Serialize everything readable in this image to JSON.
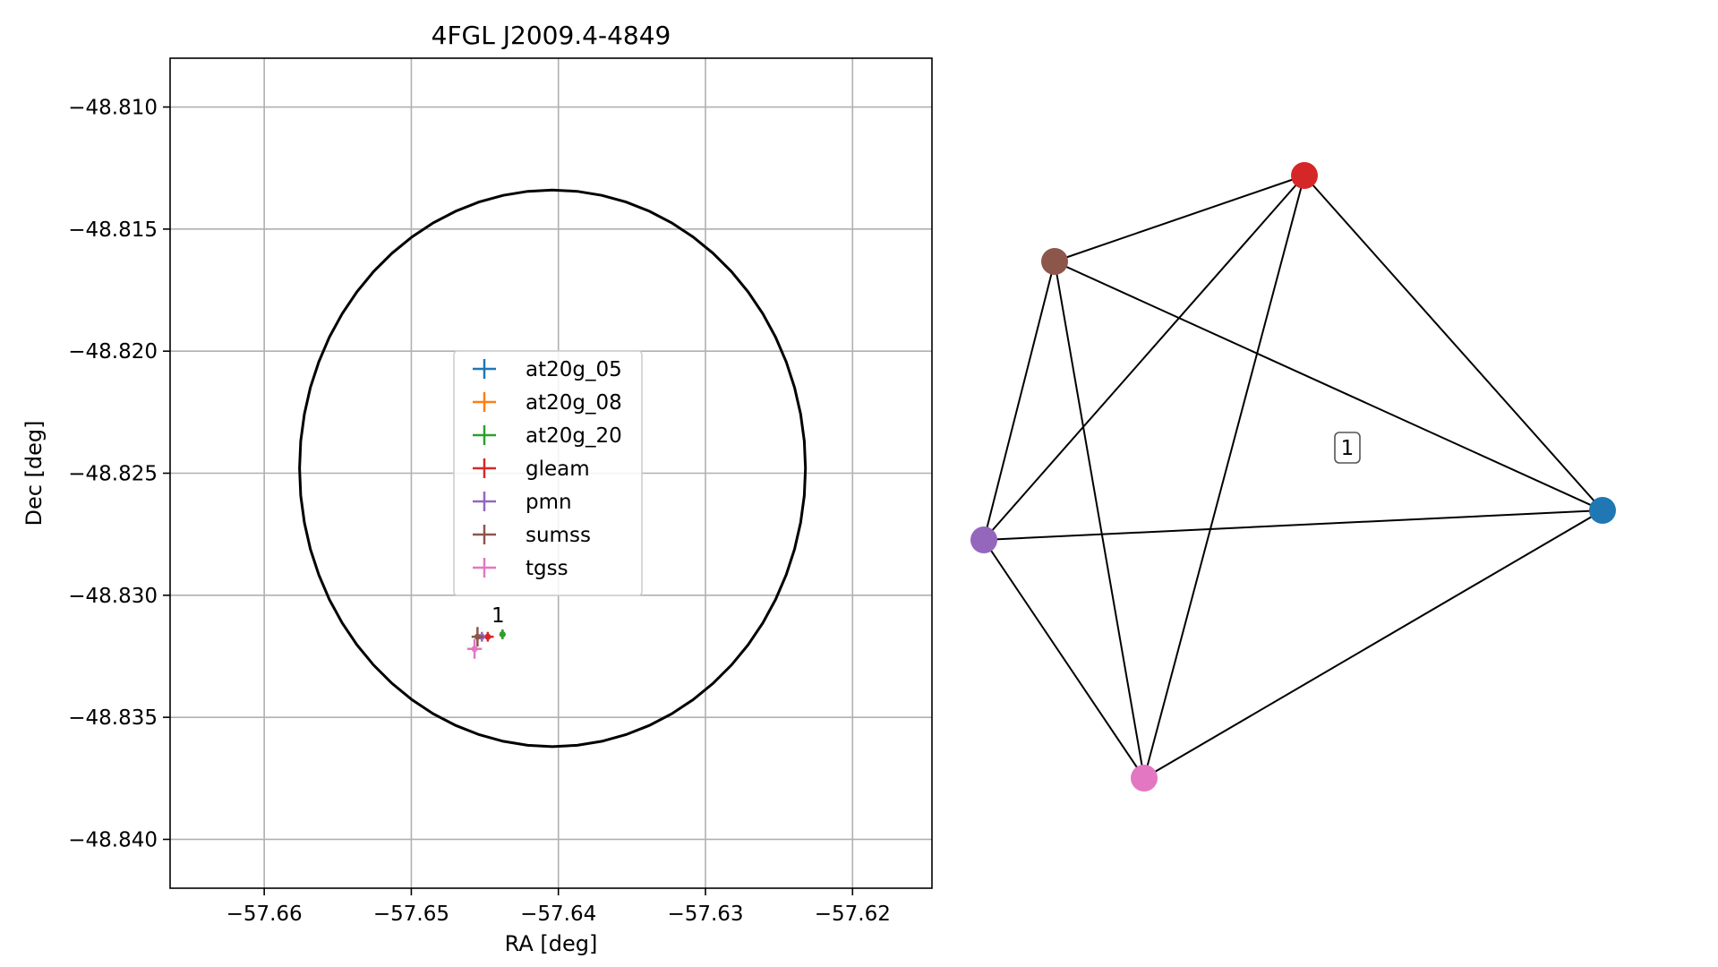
{
  "chart_data": [
    {
      "type": "scatter",
      "title": "4FGL J2009.4-4849",
      "xlabel": "RA [deg]",
      "ylabel": "Dec [deg]",
      "xlim": [
        -57.6664,
        -57.6146
      ],
      "ylim": [
        -48.842,
        -48.808
      ],
      "xticks": [
        -57.66,
        -57.65,
        -57.64,
        -57.63,
        -57.62
      ],
      "xtick_labels": [
        "−57.66",
        "−57.65",
        "−57.64",
        "−57.63",
        "−57.62"
      ],
      "yticks": [
        -48.81,
        -48.815,
        -48.82,
        -48.825,
        -48.83,
        -48.835,
        -48.84
      ],
      "ytick_labels": [
        "−48.810",
        "−48.815",
        "−48.820",
        "−48.825",
        "−48.830",
        "−48.835",
        "−48.840"
      ],
      "grid": true,
      "legend_position": "center",
      "ellipse": {
        "center": [
          -57.6404,
          -48.8248
        ],
        "ra_semi_axis": 0.0172,
        "dec_semi_axis": 0.0114,
        "color": "#000000"
      },
      "series": [
        {
          "name": "at20g_05",
          "color": "#1f77b4",
          "x": -57.6438,
          "y": -48.8316,
          "xerr": 0.00015,
          "yerr": 0.0002
        },
        {
          "name": "at20g_08",
          "color": "#ff7f0e",
          "x": -57.6438,
          "y": -48.8316,
          "xerr": 0.00015,
          "yerr": 0.0002
        },
        {
          "name": "at20g_20",
          "color": "#2ca02c",
          "x": -57.6438,
          "y": -48.8316,
          "xerr": 0.00015,
          "yerr": 0.0002
        },
        {
          "name": "gleam",
          "color": "#d62728",
          "x": -57.6448,
          "y": -48.8317,
          "xerr": 0.0004,
          "yerr": 0.0002
        },
        {
          "name": "pmn",
          "color": "#9467bd",
          "x": -57.6452,
          "y": -48.8317,
          "xerr": 0.0002,
          "yerr": 0.0002
        },
        {
          "name": "sumss",
          "color": "#8c564b",
          "x": -57.6455,
          "y": -48.8317,
          "xerr": 0.0004,
          "yerr": 0.0004
        },
        {
          "name": "tgss",
          "color": "#e377c2",
          "x": -57.6457,
          "y": -48.8322,
          "xerr": 0.0005,
          "yerr": 0.0004
        }
      ],
      "annotations": [
        {
          "text": "1",
          "x": -57.6441,
          "y": -48.8311
        }
      ]
    },
    {
      "type": "network",
      "nodes": [
        {
          "id": "red",
          "color": "#d62728"
        },
        {
          "id": "brown",
          "color": "#8c564b"
        },
        {
          "id": "purple",
          "color": "#9467bd"
        },
        {
          "id": "pink",
          "color": "#e377c2"
        },
        {
          "id": "blue",
          "color": "#1f77b4"
        }
      ],
      "edges": [
        [
          "red",
          "brown"
        ],
        [
          "red",
          "purple"
        ],
        [
          "red",
          "pink"
        ],
        [
          "red",
          "blue"
        ],
        [
          "brown",
          "purple"
        ],
        [
          "brown",
          "pink"
        ],
        [
          "brown",
          "blue"
        ],
        [
          "purple",
          "pink"
        ],
        [
          "purple",
          "blue"
        ],
        [
          "pink",
          "blue"
        ]
      ],
      "cluster_label": "1",
      "edge_color": "#000000"
    }
  ]
}
